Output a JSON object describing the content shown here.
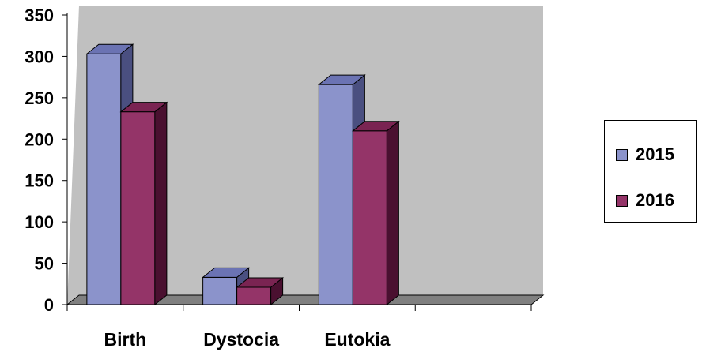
{
  "chart_data": {
    "type": "bar",
    "title": "",
    "xlabel": "",
    "ylabel": "",
    "categories": [
      "Birth",
      "Dystocia",
      "Eutokia"
    ],
    "series": [
      {
        "name": "2015",
        "values": [
          303,
          33,
          266
        ],
        "color": "#8B93CB",
        "side_color": "#4A4F80",
        "top_color": "#6B73B3"
      },
      {
        "name": "2016",
        "values": [
          233,
          21,
          210
        ],
        "color": "#943468",
        "side_color": "#4A1030",
        "top_color": "#7A2452"
      }
    ],
    "y_ticks": [
      0,
      50,
      100,
      150,
      200,
      250,
      300,
      350
    ],
    "ylim": [
      0,
      350
    ],
    "grid": false,
    "style": "3d-clustered",
    "plot_background": "#C0C0C0",
    "legend_position": "right"
  }
}
